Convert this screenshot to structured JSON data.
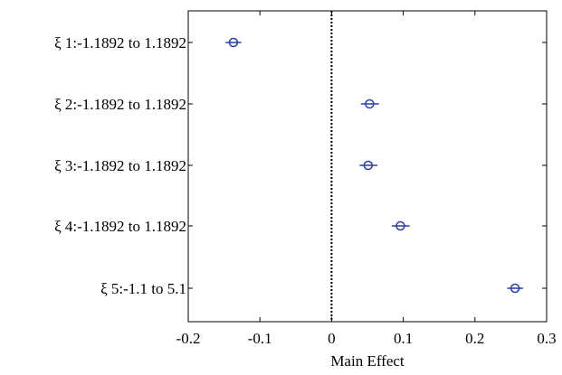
{
  "chart_data": {
    "type": "scatter",
    "title": "",
    "xlabel": "Main Effect",
    "ylabel": "",
    "xlim": [
      -0.2,
      0.3
    ],
    "xticks": [
      -0.2,
      -0.1,
      0,
      0.1,
      0.2,
      0.3
    ],
    "xtick_labels": [
      "-0.2",
      "-0.1",
      "0",
      "0.1",
      "0.2",
      "0.3"
    ],
    "grid": false,
    "reference_line": {
      "x": 0,
      "style": "dotted",
      "color": "#000000"
    },
    "categories": [
      "ξ 1:-1.1892 to 1.1892",
      "ξ 2:-1.1892 to 1.1892",
      "ξ 3:-1.1892 to 1.1892",
      "ξ 4:-1.1892 to 1.1892",
      "ξ 5:-1.1 to 5.1"
    ],
    "values": [
      -0.137,
      0.053,
      0.051,
      0.096,
      0.256
    ],
    "interval_low": [
      -0.148,
      0.041,
      0.039,
      0.084,
      0.245
    ],
    "interval_high": [
      -0.126,
      0.066,
      0.064,
      0.109,
      0.267
    ],
    "marker": "open-circle",
    "marker_color": "#2b3fa0"
  }
}
